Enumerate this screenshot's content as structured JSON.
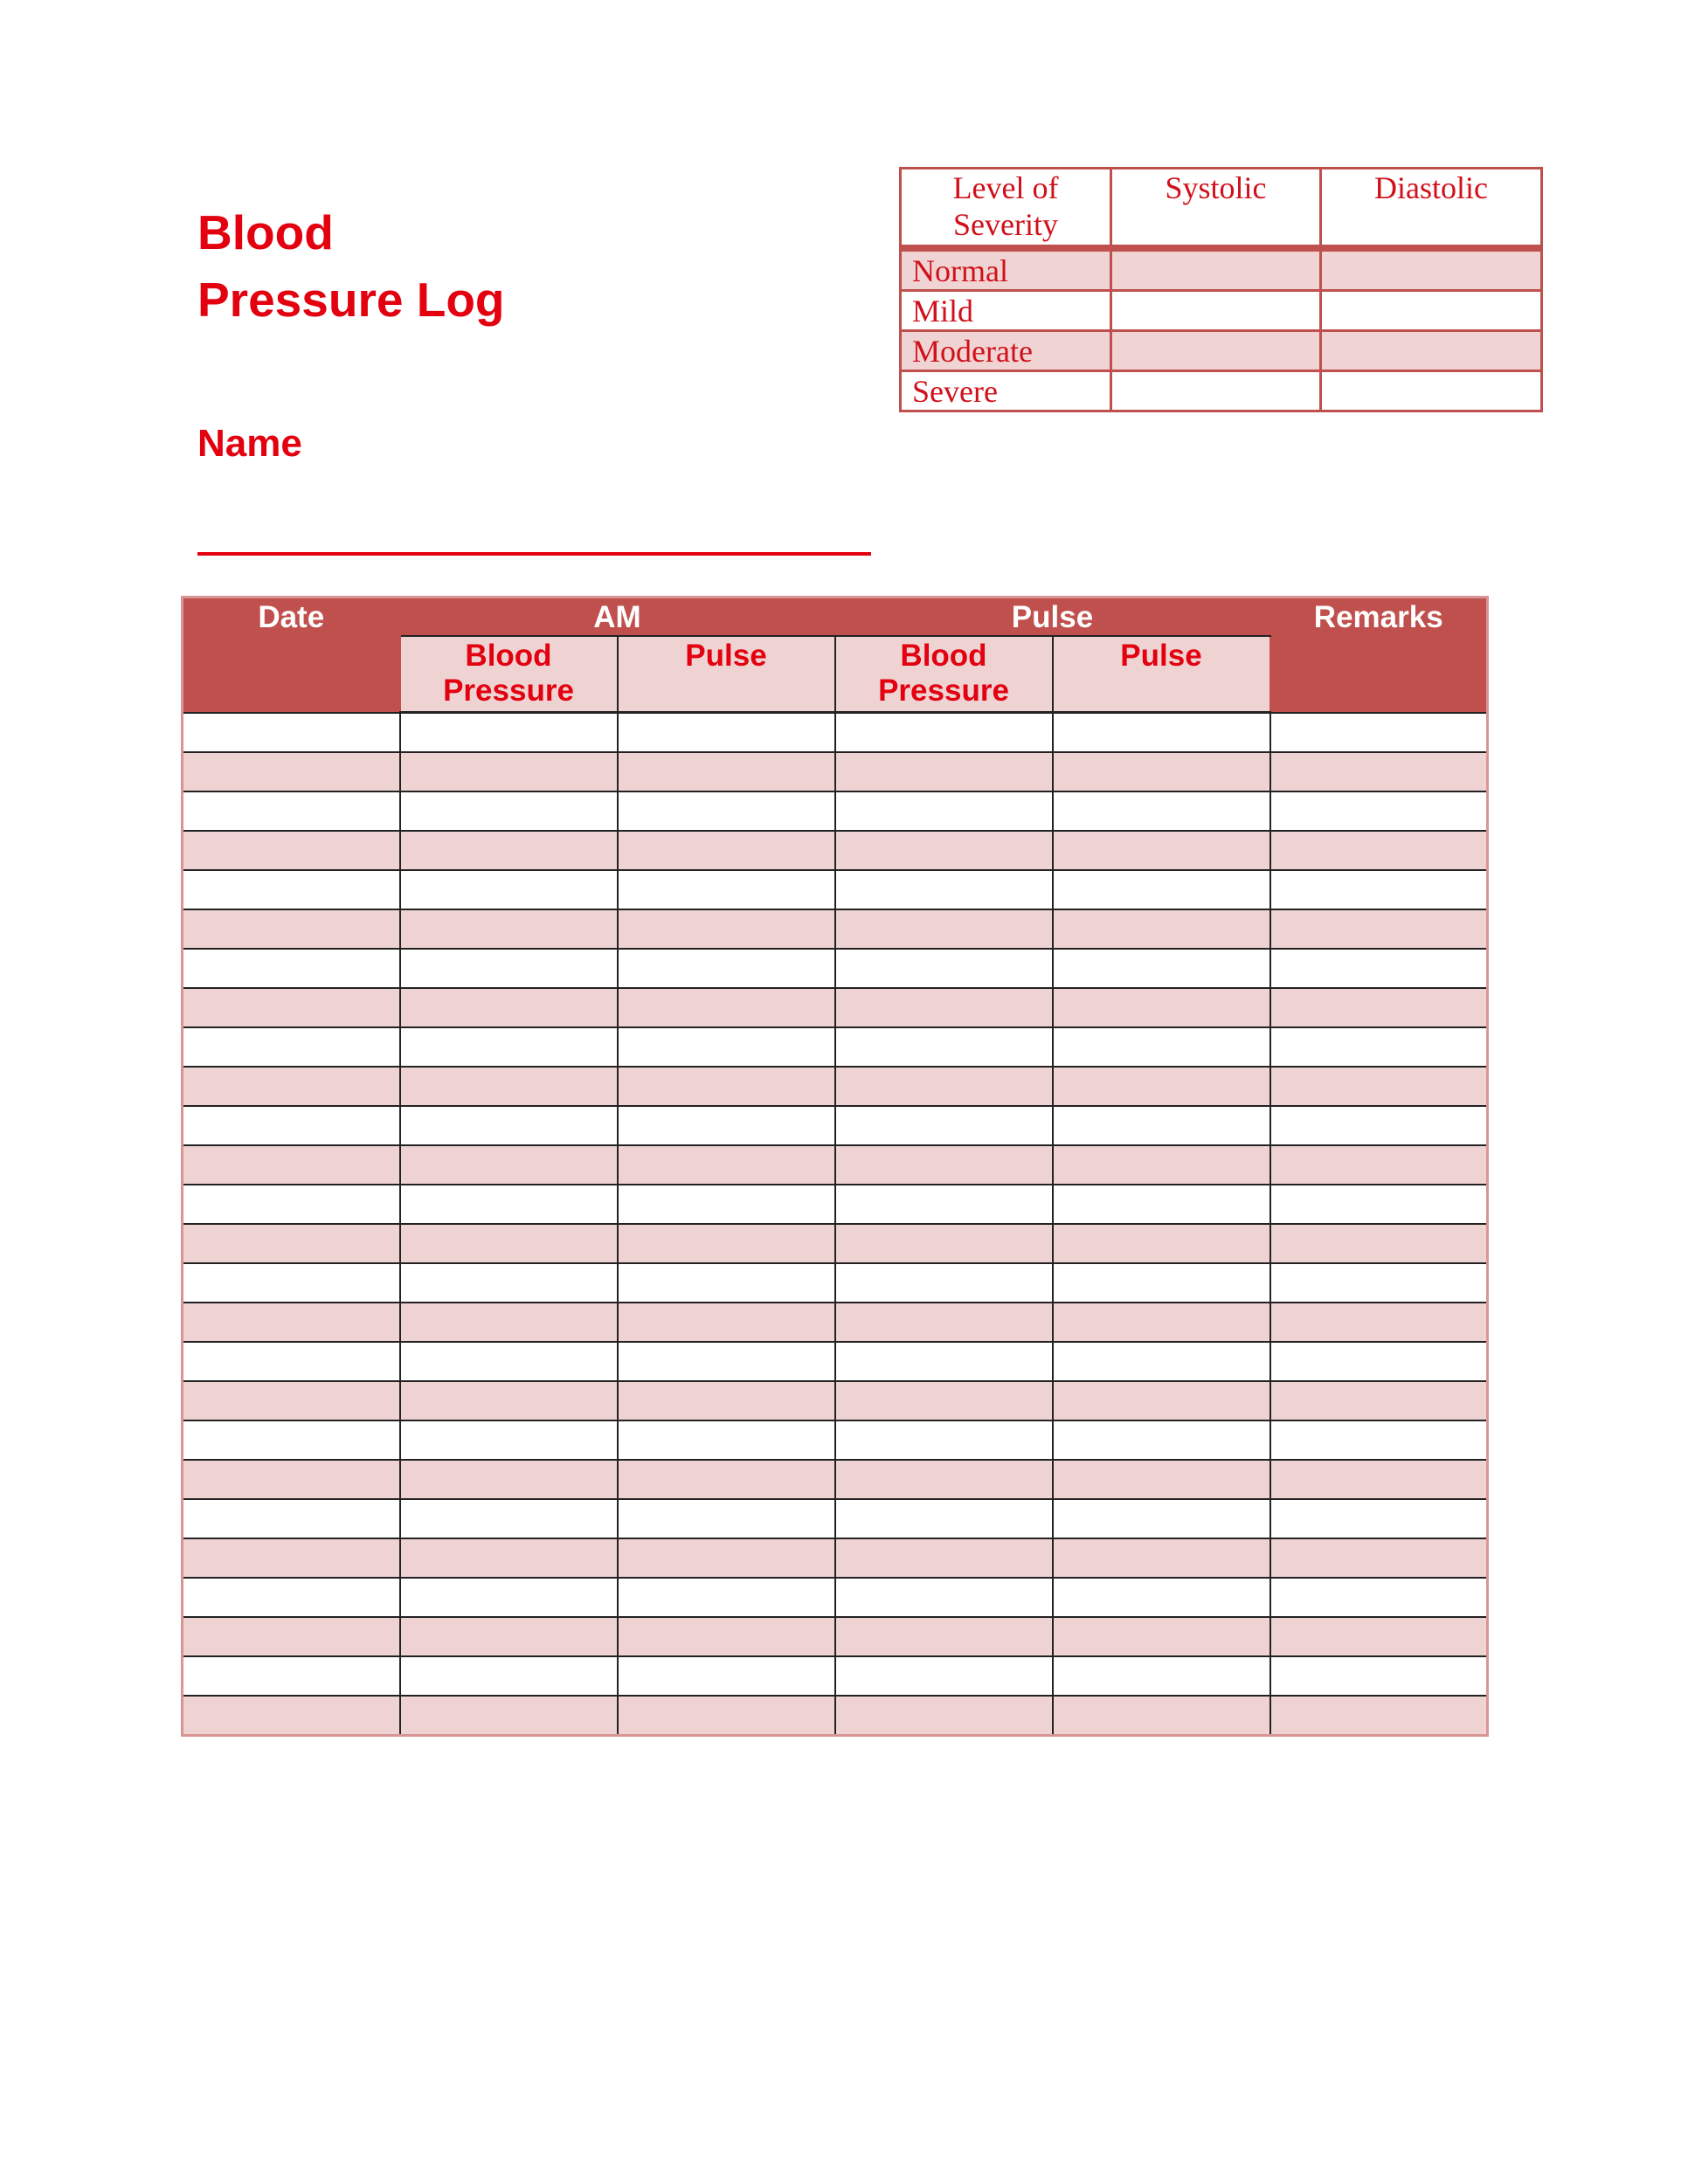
{
  "title": {
    "line1": "Blood",
    "line2": "Pressure Log"
  },
  "name_label": "Name",
  "severity_table": {
    "headers": [
      "Level of Severity",
      "Systolic",
      "Diastolic"
    ],
    "rows": [
      "Normal",
      "Mild",
      "Moderate",
      "Severe"
    ]
  },
  "log_table": {
    "date": "Date",
    "am": "AM",
    "pm": "Pulse",
    "remarks": "Remarks",
    "sub": [
      "Blood Pressure",
      "Pulse",
      "Blood Pressure",
      "Pulse"
    ]
  },
  "colors": {
    "accent": "#e3000f",
    "header": "#c0504d",
    "stripe": "#efd3d3"
  }
}
